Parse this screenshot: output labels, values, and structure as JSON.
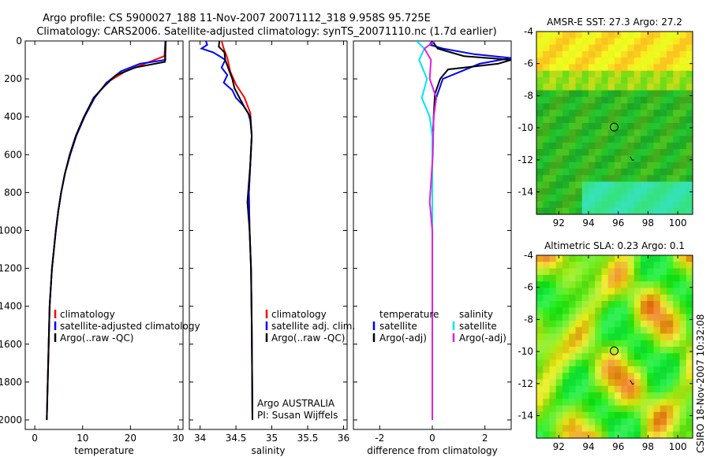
{
  "title_line1": "Argo profile: CS 5900027_188 11-Nov-2007 20071112_318 9.958S 95.725E",
  "title_line2": "Climatology: CARS2006. Satellite-adjusted climatology: synTS_20071110.nc (1.7d earlier)",
  "side_label": "CSIRO 18-Nov-2007 10:32:08",
  "colors": {
    "clim": "#ff0000",
    "sat": "#0000ff",
    "argo": "#000000",
    "cyan": "#00e5ee",
    "magenta": "#e020e0"
  },
  "chart_data": [
    {
      "type": "line",
      "id": "temperature",
      "xlabel": "temperature",
      "xlim": [
        -2,
        31
      ],
      "ylim": [
        0,
        2050
      ],
      "xticks": [
        0,
        10,
        20,
        30
      ],
      "yticks": [
        0,
        200,
        400,
        600,
        800,
        1000,
        1200,
        1400,
        1600,
        1800,
        2000
      ],
      "legend": [
        "climatology",
        "satellite-adjusted climatology",
        "Argo(..raw -QC)"
      ],
      "series": [
        {
          "name": "climatology",
          "color": "clim",
          "points": [
            [
              27.3,
              0
            ],
            [
              27.1,
              80
            ],
            [
              24,
              110
            ],
            [
              19,
              160
            ],
            [
              15,
              220
            ],
            [
              12.5,
              300
            ],
            [
              10.3,
              400
            ],
            [
              8.6,
              500
            ],
            [
              7.3,
              600
            ],
            [
              6.3,
              700
            ],
            [
              5.5,
              800
            ],
            [
              4.9,
              900
            ],
            [
              4.4,
              1000
            ],
            [
              3.6,
              1200
            ],
            [
              3.1,
              1400
            ],
            [
              2.9,
              1600
            ],
            [
              2.7,
              1800
            ],
            [
              2.5,
              2000
            ]
          ]
        },
        {
          "name": "satellite",
          "color": "sat",
          "points": [
            [
              27.3,
              0
            ],
            [
              27.3,
              100
            ],
            [
              22,
              120
            ],
            [
              18,
              160
            ],
            [
              15,
              220
            ],
            [
              12.5,
              300
            ],
            [
              10.4,
              400
            ],
            [
              8.7,
              500
            ],
            [
              7.4,
              600
            ],
            [
              6.3,
              700
            ],
            [
              5.5,
              800
            ],
            [
              4.9,
              900
            ],
            [
              4.4,
              1000
            ],
            [
              3.6,
              1200
            ],
            [
              3.1,
              1400
            ],
            [
              2.9,
              1600
            ],
            [
              2.7,
              1800
            ],
            [
              2.5,
              2000
            ]
          ]
        },
        {
          "name": "argo",
          "color": "argo",
          "points": [
            [
              27.4,
              0
            ],
            [
              27.2,
              110
            ],
            [
              21,
              140
            ],
            [
              17,
              180
            ],
            [
              14.5,
              240
            ],
            [
              12.3,
              300
            ],
            [
              10.3,
              400
            ],
            [
              8.6,
              500
            ],
            [
              7.3,
              600
            ],
            [
              6.3,
              700
            ],
            [
              5.5,
              800
            ],
            [
              4.9,
              900
            ],
            [
              4.4,
              1000
            ],
            [
              3.6,
              1200
            ],
            [
              3.1,
              1400
            ],
            [
              2.9,
              1600
            ],
            [
              2.7,
              1800
            ],
            [
              2.5,
              2000
            ]
          ]
        }
      ]
    },
    {
      "type": "line",
      "id": "salinity",
      "xlabel": "salinity",
      "xlim": [
        33.85,
        36.05
      ],
      "ylim": [
        0,
        2050
      ],
      "xticks": [
        34,
        34.5,
        35,
        35.5,
        36
      ],
      "legend": [
        "climatology",
        "satellite adj. clim.",
        "Argo(..raw -QC)"
      ],
      "annotations": [
        "Argo AUSTRALIA",
        "PI: Susan Wijffels"
      ],
      "series": [
        {
          "name": "climatology",
          "color": "clim",
          "points": [
            [
              34.3,
              0
            ],
            [
              34.33,
              40
            ],
            [
              34.38,
              90
            ],
            [
              34.42,
              160
            ],
            [
              34.5,
              230
            ],
            [
              34.62,
              300
            ],
            [
              34.7,
              380
            ],
            [
              34.72,
              500
            ],
            [
              34.7,
              650
            ],
            [
              34.68,
              800
            ],
            [
              34.69,
              1000
            ],
            [
              34.71,
              1200
            ],
            [
              34.72,
              1500
            ],
            [
              34.73,
              2000
            ]
          ]
        },
        {
          "name": "satellite",
          "color": "sat",
          "points": [
            [
              34.08,
              0
            ],
            [
              34.1,
              20
            ],
            [
              34.02,
              40
            ],
            [
              34.18,
              60
            ],
            [
              34.27,
              80
            ],
            [
              34.35,
              100
            ],
            [
              34.3,
              140
            ],
            [
              34.38,
              180
            ],
            [
              34.33,
              220
            ],
            [
              34.45,
              260
            ],
            [
              34.5,
              300
            ],
            [
              34.6,
              340
            ],
            [
              34.67,
              380
            ],
            [
              34.7,
              420
            ],
            [
              34.72,
              500
            ],
            [
              34.7,
              650
            ],
            [
              34.68,
              800
            ],
            [
              34.69,
              1000
            ],
            [
              34.71,
              1200
            ],
            [
              34.72,
              1500
            ],
            [
              34.73,
              2000
            ]
          ]
        },
        {
          "name": "argo",
          "color": "argo",
          "points": [
            [
              34.27,
              0
            ],
            [
              34.26,
              30
            ],
            [
              34.34,
              60
            ],
            [
              34.35,
              100
            ],
            [
              34.4,
              150
            ],
            [
              34.45,
              200
            ],
            [
              34.48,
              250
            ],
            [
              34.55,
              300
            ],
            [
              34.62,
              350
            ],
            [
              34.7,
              400
            ],
            [
              34.72,
              500
            ],
            [
              34.7,
              650
            ],
            [
              34.66,
              850
            ],
            [
              34.69,
              1000
            ],
            [
              34.71,
              1200
            ],
            [
              34.72,
              1500
            ],
            [
              34.73,
              2000
            ]
          ]
        }
      ]
    },
    {
      "type": "line",
      "id": "difference",
      "xlabel": "difference from climatology",
      "xlim": [
        -3,
        3
      ],
      "ylim": [
        0,
        2050
      ],
      "xticks": [
        -2,
        0,
        2
      ],
      "legend_temperature_title": "temperature",
      "legend_temperature": [
        "satellite",
        "Argo(-adj)"
      ],
      "legend_salinity_title": "salinity",
      "legend_salinity": [
        "satellite",
        "Argo(-adj)"
      ],
      "series": [
        {
          "name": "temp satellite",
          "color": "sat",
          "points": [
            [
              0,
              0
            ],
            [
              -0.1,
              20
            ],
            [
              0.4,
              40
            ],
            [
              1.6,
              70
            ],
            [
              3,
              90
            ],
            [
              1.8,
              120
            ],
            [
              0.4,
              200
            ],
            [
              0.15,
              300
            ],
            [
              0.05,
              400
            ],
            [
              0,
              600
            ],
            [
              0,
              1000
            ],
            [
              0,
              2000
            ]
          ]
        },
        {
          "name": "temp argo",
          "color": "argo",
          "points": [
            [
              0,
              0
            ],
            [
              0.2,
              40
            ],
            [
              1.2,
              80
            ],
            [
              3,
              100
            ],
            [
              2.5,
              120
            ],
            [
              0.6,
              150
            ],
            [
              0.3,
              200
            ],
            [
              0.1,
              280
            ],
            [
              0.05,
              400
            ],
            [
              0,
              600
            ],
            [
              0,
              1000
            ],
            [
              0,
              2000
            ]
          ]
        },
        {
          "name": "sal satellite",
          "color": "cyan",
          "points": [
            [
              -0.6,
              0
            ],
            [
              -0.3,
              40
            ],
            [
              -0.5,
              100
            ],
            [
              -0.2,
              200
            ],
            [
              -0.4,
              300
            ],
            [
              -0.1,
              400
            ],
            [
              0,
              500
            ],
            [
              0,
              800
            ],
            [
              0,
              1200
            ],
            [
              0,
              2000
            ]
          ]
        },
        {
          "name": "sal argo",
          "color": "magenta",
          "points": [
            [
              0.1,
              0
            ],
            [
              -0.3,
              40
            ],
            [
              -0.05,
              100
            ],
            [
              -0.1,
              200
            ],
            [
              0.15,
              300
            ],
            [
              0.05,
              400
            ],
            [
              0.02,
              600
            ],
            [
              -0.1,
              850
            ],
            [
              0,
              1000
            ],
            [
              0,
              2000
            ]
          ]
        }
      ]
    }
  ],
  "maps": [
    {
      "title": "AMSR-E SST: 27.3 Argo: 27.2",
      "xticks": [
        92,
        94,
        96,
        98,
        100
      ],
      "yticks": [
        -4,
        -6,
        -8,
        -10,
        -12,
        -14
      ],
      "xlim": [
        90.5,
        101
      ],
      "ylim": [
        -15.4,
        -4
      ]
    },
    {
      "title": "Altimetric SLA: 0.23 Argo: 0.1",
      "xticks": [
        92,
        94,
        96,
        98,
        100
      ],
      "yticks": [
        -4,
        -6,
        -8,
        -10,
        -12,
        -14
      ],
      "xlim": [
        90.5,
        101
      ],
      "ylim": [
        -15.4,
        -4
      ]
    }
  ],
  "argo_location": {
    "lon": 95.725,
    "lat": -9.958
  }
}
